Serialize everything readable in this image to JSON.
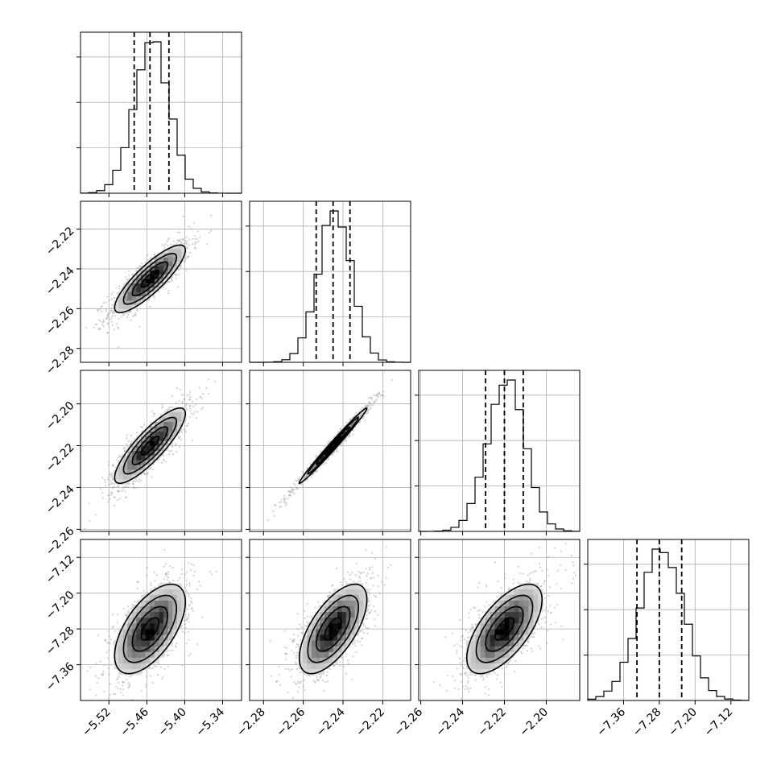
{
  "chart_data": {
    "type": "corner",
    "parameters": [
      {
        "index": 0,
        "mean": -5.455,
        "sd": 0.028,
        "q16": -5.48,
        "q50": -5.455,
        "q84": -5.425,
        "range": [
          -5.565,
          -5.31
        ],
        "ticks": [
          -5.52,
          -5.46,
          -5.4,
          -5.34
        ],
        "tick_labels": [
          "−5.52",
          "−5.46",
          "−5.40",
          "−5.34"
        ]
      },
      {
        "index": 1,
        "mean": -2.245,
        "sd": 0.0085,
        "q16": -2.2535,
        "q50": -2.245,
        "q84": -2.2365,
        "range": [
          -2.287,
          -2.206
        ],
        "ticks": [
          -2.28,
          -2.26,
          -2.24,
          -2.22
        ],
        "tick_labels": [
          "−2.28",
          "−2.26",
          "−2.24",
          "−2.22"
        ]
      },
      {
        "index": 2,
        "mean": -2.22,
        "sd": 0.009,
        "q16": -2.229,
        "q50": -2.22,
        "q84": -2.211,
        "range": [
          -2.261,
          -2.184
        ],
        "ticks": [
          -2.26,
          -2.24,
          -2.22,
          -2.2
        ],
        "tick_labels": [
          "−2.26",
          "−2.24",
          "−2.22",
          "−2.20"
        ]
      },
      {
        "index": 3,
        "mean": -7.28,
        "sd": 0.05,
        "q16": -7.33,
        "q50": -7.28,
        "q84": -7.23,
        "range": [
          -7.44,
          -7.08
        ],
        "ticks": [
          -7.36,
          -7.28,
          -7.2,
          -7.12
        ],
        "tick_labels": [
          "−7.36",
          "−7.28",
          "−7.20",
          "−7.12"
        ]
      }
    ],
    "correlations": [
      {
        "i": 1,
        "j": 0,
        "rho": 0.85
      },
      {
        "i": 2,
        "j": 0,
        "rho": 0.85
      },
      {
        "i": 2,
        "j": 1,
        "rho": 0.99
      },
      {
        "i": 3,
        "j": 0,
        "rho": 0.6
      },
      {
        "i": 3,
        "j": 1,
        "rho": 0.65
      },
      {
        "i": 3,
        "j": 2,
        "rho": 0.65
      }
    ],
    "histogram_bins": 20,
    "contour_levels_sigma": [
      0.5,
      1.0,
      1.5,
      2.0
    ],
    "grid": true,
    "title": "",
    "xlabel": "",
    "ylabel": ""
  }
}
